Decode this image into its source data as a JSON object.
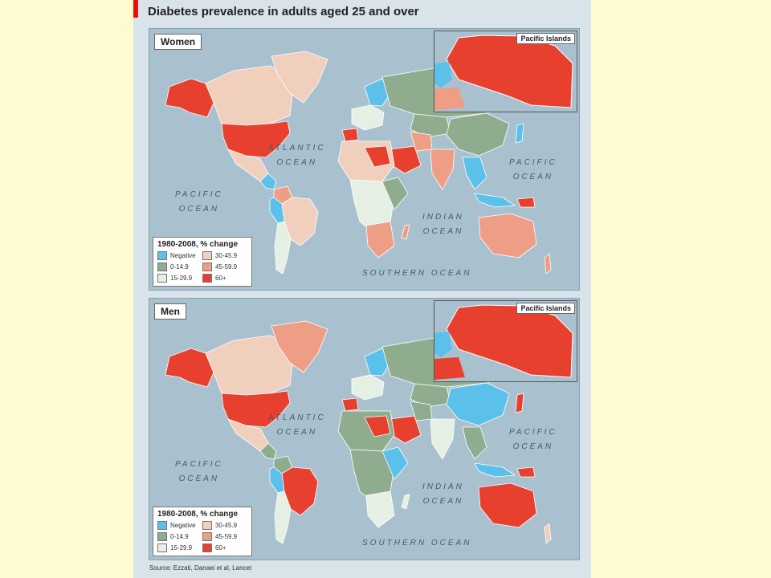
{
  "title": "Diabetes prevalence in adults aged 25 and over",
  "panels": {
    "women": {
      "label": "Women",
      "inset_label": "Pacific Islands"
    },
    "men": {
      "label": "Men",
      "inset_label": "Pacific Islands"
    }
  },
  "oceans": {
    "atlantic_1": "ATLANTIC",
    "atlantic_2": "OCEAN",
    "pacific_east_1": "PACIFIC",
    "pacific_east_2": "OCEAN",
    "pacific_west_1": "PACIFIC",
    "pacific_west_2": "OCEAN",
    "indian_1": "INDIAN",
    "indian_2": "OCEAN",
    "southern": "SOUTHERN OCEAN"
  },
  "legend": {
    "title": "1980-2008, % change",
    "items": [
      {
        "label": "Negative",
        "color": "#5bc0ea"
      },
      {
        "label": "30-45.9",
        "color": "#f1cfbd"
      },
      {
        "label": "0-14.9",
        "color": "#8fac8f"
      },
      {
        "label": "45-59.9",
        "color": "#ee9e85"
      },
      {
        "label": "15-29.9",
        "color": "#e6efe3"
      },
      {
        "label": "60+",
        "color": "#e8402e"
      }
    ]
  },
  "source": "Source: Ezzati, Danaei et al, Lancet",
  "colors": {
    "negative": "#5bc0ea",
    "c0_14": "#8fac8f",
    "c15_29": "#e6efe3",
    "c30_45": "#f1cfbd",
    "c45_59": "#ee9e85",
    "c60": "#e8402e",
    "ocean": "#a9c1cf",
    "accent": "#e3120b"
  }
}
